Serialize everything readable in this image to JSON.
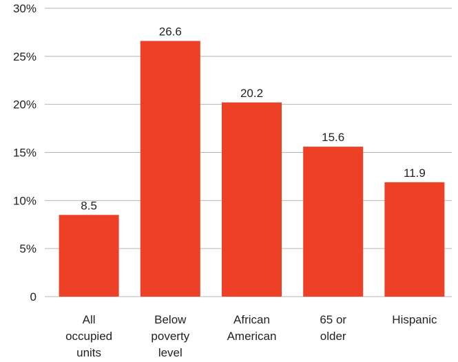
{
  "chart_data": {
    "type": "bar",
    "categories": [
      [
        "All",
        "occupied",
        "units"
      ],
      [
        "Below",
        "poverty",
        "level"
      ],
      [
        "African",
        "American"
      ],
      [
        "65 or",
        "older"
      ],
      [
        "Hispanic"
      ]
    ],
    "values": [
      8.5,
      26.6,
      20.2,
      15.6,
      11.9
    ],
    "value_labels": [
      "8.5",
      "26.6",
      "20.2",
      "15.6",
      "11.9"
    ],
    "y_ticks": [
      0,
      5,
      10,
      15,
      20,
      25,
      30
    ],
    "y_tick_labels": [
      "0",
      "5%",
      "10%",
      "15%",
      "20%",
      "25%",
      "30%"
    ],
    "ylim": [
      0,
      30
    ],
    "grid": true,
    "bar_color": "#ee4027",
    "title": "",
    "xlabel": "",
    "ylabel": ""
  }
}
